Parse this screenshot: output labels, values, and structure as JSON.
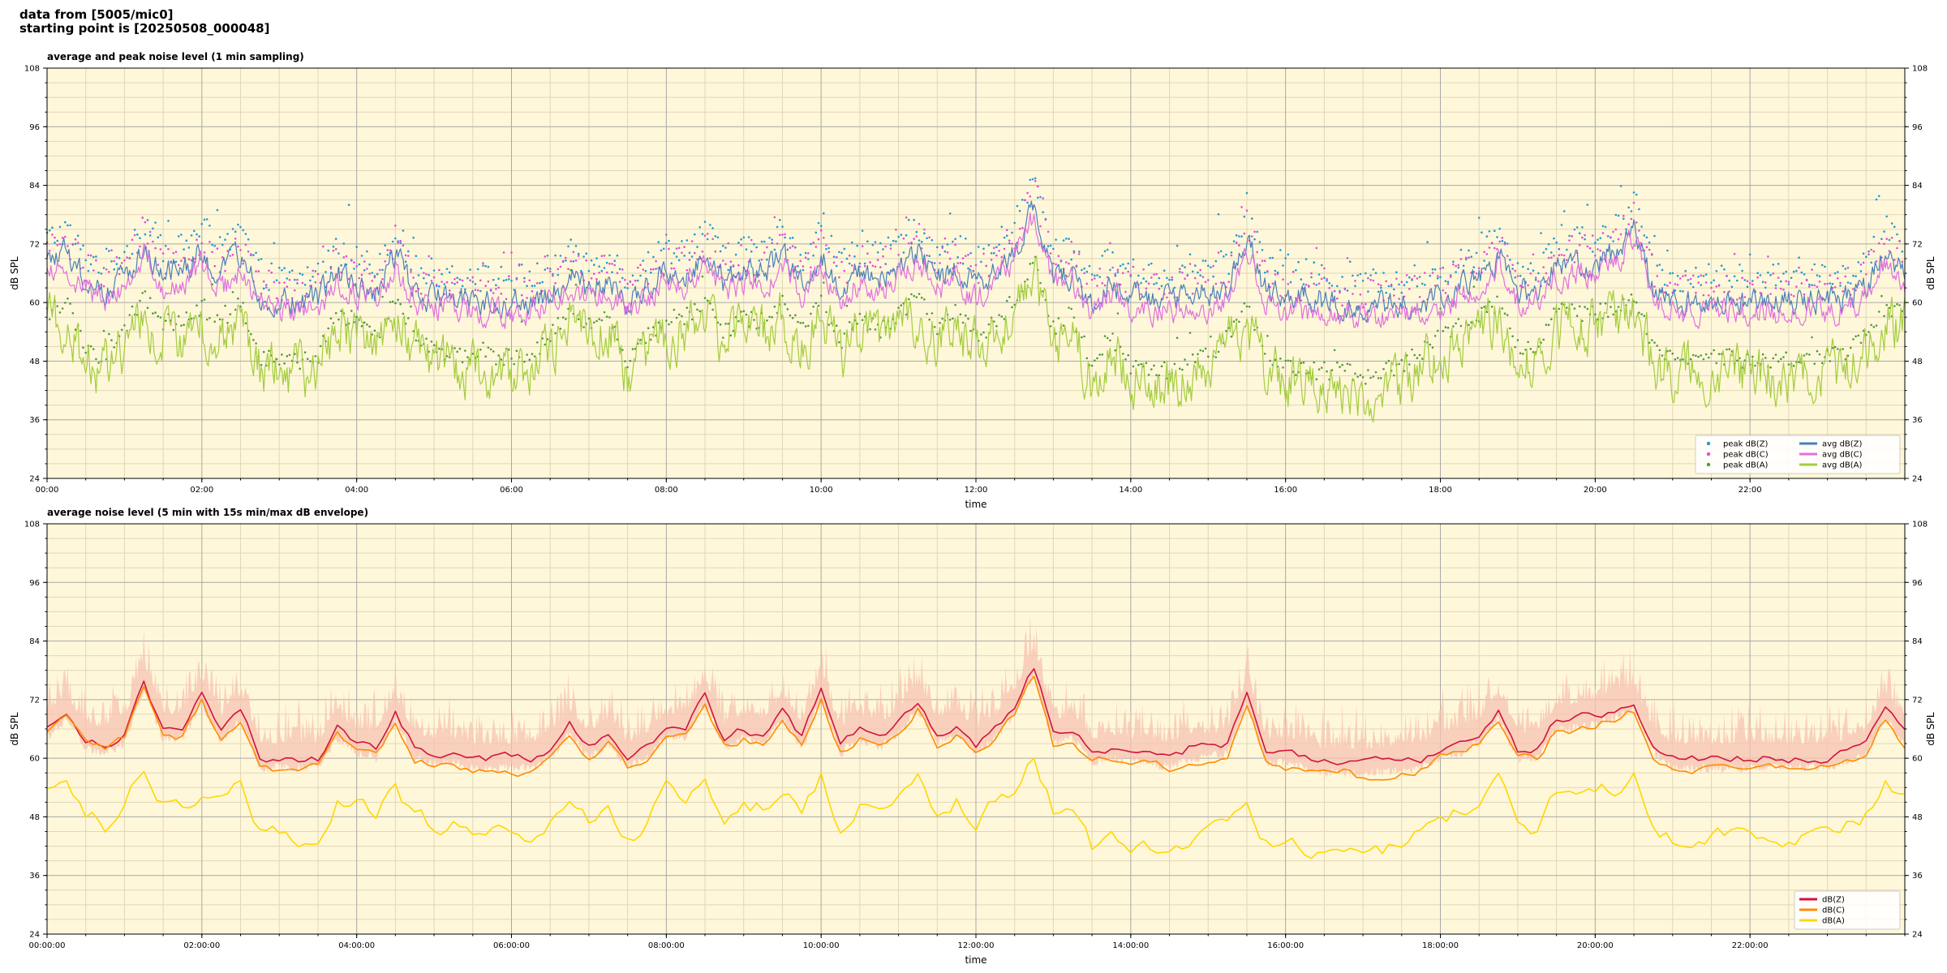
{
  "header": {
    "line1": "data from [5005/mic0]",
    "line2": "starting point is [20250508_000048]"
  },
  "colors": {
    "plot_bg": "#fff7d9",
    "grid_major": "#a8a8a8",
    "grid_minor": "#e0d7b8",
    "peak_z": "#1f9bd6",
    "peak_c": "#e64bd8",
    "peak_a": "#4f9a3d",
    "avg_z": "#4a7fb8",
    "avg_c": "#e06fe0",
    "avg_a": "#a3cd3f",
    "env": "#f7c3b0",
    "dbz": "#d1133c",
    "dbc": "#ff8c00",
    "dba": "#ffd700"
  },
  "chart_data": [
    {
      "type": "line",
      "title": "average and peak noise level (1 min sampling)",
      "xlabel": "time",
      "ylabel": "dB SPL",
      "xlim": [
        0,
        24
      ],
      "ylim": [
        24,
        108
      ],
      "y_ticks": [
        "24",
        "36",
        "48",
        "60",
        "72",
        "84",
        "96",
        "108"
      ],
      "x_ticks": [
        "00:00",
        "02:00",
        "04:00",
        "06:00",
        "08:00",
        "10:00",
        "12:00",
        "14:00",
        "16:00",
        "18:00",
        "20:00",
        "22:00"
      ],
      "grid": true,
      "legend_position": "bottom-right",
      "legend_cols": 2,
      "series": [
        {
          "name": "peak dB(Z)",
          "kind": "points",
          "color_key": "peak_z",
          "base": "Z",
          "offset": 5
        },
        {
          "name": "peak dB(C)",
          "kind": "points",
          "color_key": "peak_c",
          "base": "C",
          "offset": 5
        },
        {
          "name": "peak dB(A)",
          "kind": "points",
          "color_key": "peak_a",
          "base": "A",
          "offset": 3
        },
        {
          "name": "avg dB(Z)",
          "kind": "line",
          "color_key": "avg_z",
          "base": "Z",
          "offset": 0
        },
        {
          "name": "avg dB(C)",
          "kind": "line",
          "color_key": "avg_c",
          "base": "C",
          "offset": 0
        },
        {
          "name": "avg dB(A)",
          "kind": "line",
          "color_key": "avg_a",
          "base": "A",
          "offset": 0
        }
      ],
      "x": [
        0,
        0.25,
        0.5,
        0.75,
        1,
        1.25,
        1.5,
        1.75,
        2,
        2.25,
        2.5,
        2.75,
        3,
        3.25,
        3.5,
        3.75,
        4,
        4.25,
        4.5,
        4.75,
        5,
        5.25,
        5.5,
        5.75,
        6,
        6.25,
        6.5,
        6.75,
        7,
        7.25,
        7.5,
        7.75,
        8,
        8.25,
        8.5,
        8.75,
        9,
        9.25,
        9.5,
        9.75,
        10,
        10.25,
        10.5,
        10.75,
        11,
        11.25,
        11.5,
        11.75,
        12,
        12.25,
        12.5,
        12.75,
        13,
        13.25,
        13.5,
        13.75,
        14,
        14.25,
        14.5,
        14.75,
        15,
        15.25,
        15.5,
        15.75,
        16,
        16.25,
        16.5,
        16.75,
        17,
        17.25,
        17.5,
        17.75,
        18,
        18.25,
        18.5,
        18.75,
        19,
        19.25,
        19.5,
        19.75,
        20,
        20.25,
        20.5,
        20.75,
        21,
        21.25,
        21.5,
        21.75,
        22,
        22.25,
        22.5,
        22.75,
        23,
        23.25,
        23.5,
        23.75,
        24
      ],
      "avg_z": [
        68,
        70,
        64,
        63,
        65,
        72,
        66,
        66,
        71,
        65,
        70,
        61,
        60,
        60,
        61,
        66,
        64,
        62,
        70,
        62,
        61,
        61,
        60,
        60,
        60,
        60,
        62,
        65,
        63,
        65,
        60,
        63,
        66,
        66,
        70,
        64,
        66,
        65,
        70,
        64,
        70,
        63,
        66,
        64,
        67,
        71,
        65,
        67,
        63,
        66,
        71,
        80,
        65,
        66,
        60,
        64,
        61,
        61,
        60,
        62,
        62,
        63,
        73,
        62,
        62,
        61,
        60,
        59,
        59,
        59,
        60,
        60,
        61,
        63,
        65,
        70,
        62,
        62,
        68,
        68,
        68,
        70,
        75,
        63,
        60,
        60,
        60,
        60,
        60,
        60,
        60,
        61,
        60,
        61,
        63,
        70,
        66,
        64,
        66
      ],
      "avg_c": [
        66,
        68,
        62,
        61,
        63,
        70,
        63,
        63,
        68,
        62,
        67,
        59,
        58,
        58,
        59,
        64,
        62,
        60,
        68,
        60,
        59,
        59,
        58,
        58,
        58,
        58,
        60,
        63,
        61,
        63,
        58,
        61,
        64,
        64,
        68,
        62,
        64,
        63,
        68,
        62,
        68,
        61,
        64,
        62,
        65,
        69,
        63,
        65,
        61,
        64,
        69,
        78,
        63,
        64,
        58,
        62,
        59,
        59,
        58,
        60,
        59,
        61,
        71,
        60,
        59,
        58,
        58,
        57,
        57,
        57,
        58,
        58,
        59,
        61,
        63,
        68,
        60,
        60,
        66,
        66,
        66,
        68,
        73,
        61,
        58,
        58,
        58,
        58,
        58,
        58,
        58,
        59,
        58,
        59,
        61,
        68,
        64,
        62,
        64
      ],
      "avg_a": [
        55,
        57,
        47,
        46,
        52,
        58,
        53,
        53,
        56,
        52,
        57,
        46,
        45,
        45,
        46,
        55,
        53,
        50,
        58,
        50,
        47,
        47,
        46,
        46,
        46,
        46,
        50,
        56,
        52,
        55,
        45,
        50,
        54,
        54,
        58,
        51,
        54,
        53,
        57,
        51,
        57,
        49,
        54,
        51,
        55,
        58,
        52,
        55,
        50,
        53,
        58,
        65,
        52,
        55,
        44,
        50,
        44,
        43,
        43,
        45,
        46,
        50,
        56,
        45,
        44,
        43,
        43,
        43,
        42,
        43,
        44,
        47,
        50,
        53,
        54,
        57,
        48,
        48,
        55,
        55,
        55,
        56,
        58,
        48,
        45,
        45,
        46,
        46,
        45,
        45,
        45,
        46,
        46,
        47,
        50,
        56,
        55,
        53,
        55
      ]
    },
    {
      "type": "line",
      "title": "average noise level (5 min with 15s min/max dB envelope)",
      "xlabel": "time",
      "ylabel": "dB SPL",
      "xlim": [
        0,
        24
      ],
      "ylim": [
        24,
        108
      ],
      "y_ticks": [
        "24",
        "36",
        "48",
        "60",
        "72",
        "84",
        "96",
        "108"
      ],
      "x_ticks": [
        "00:00:00",
        "02:00:00",
        "04:00:00",
        "06:00:00",
        "08:00:00",
        "10:00:00",
        "12:00:00",
        "14:00:00",
        "16:00:00",
        "18:00:00",
        "20:00:00",
        "22:00:00"
      ],
      "grid": true,
      "legend_position": "bottom-right",
      "legend_cols": 1,
      "envelope": {
        "color_key": "env",
        "base": "Z",
        "min_offset": -3,
        "max_offset": 12
      },
      "series": [
        {
          "name": "dB(Z)",
          "kind": "line",
          "color_key": "dbz",
          "base": "Z",
          "offset": 0
        },
        {
          "name": "dB(C)",
          "kind": "line",
          "color_key": "dbc",
          "base": "C",
          "offset": 0
        },
        {
          "name": "dB(A)",
          "kind": "line",
          "color_key": "dba",
          "base": "A",
          "offset": 0
        }
      ],
      "x": [
        0,
        0.25,
        0.5,
        0.75,
        1,
        1.25,
        1.5,
        1.75,
        2,
        2.25,
        2.5,
        2.75,
        3,
        3.25,
        3.5,
        3.75,
        4,
        4.25,
        4.5,
        4.75,
        5,
        5.25,
        5.5,
        5.75,
        6,
        6.25,
        6.5,
        6.75,
        7,
        7.25,
        7.5,
        7.75,
        8,
        8.25,
        8.5,
        8.75,
        9,
        9.25,
        9.5,
        9.75,
        10,
        10.25,
        10.5,
        10.75,
        11,
        11.25,
        11.5,
        11.75,
        12,
        12.25,
        12.5,
        12.75,
        13,
        13.25,
        13.5,
        13.75,
        14,
        14.25,
        14.5,
        14.75,
        15,
        15.25,
        15.5,
        15.75,
        16,
        16.25,
        16.5,
        16.75,
        17,
        17.25,
        17.5,
        17.75,
        18,
        18.25,
        18.5,
        18.75,
        19,
        19.25,
        19.5,
        19.75,
        20,
        20.25,
        20.5,
        20.75,
        21,
        21.25,
        21.5,
        21.75,
        22,
        22.25,
        22.5,
        22.75,
        23,
        23.25,
        23.5,
        23.75,
        24
      ],
      "avg_z": [
        66,
        70,
        64,
        63,
        65,
        76,
        66,
        66,
        73,
        65,
        70,
        60,
        60,
        60,
        60,
        66,
        63,
        62,
        70,
        62,
        61,
        61,
        60,
        60,
        60,
        60,
        62,
        67,
        62,
        65,
        60,
        62,
        66,
        66,
        73,
        64,
        66,
        65,
        70,
        64,
        74,
        63,
        66,
        64,
        67,
        72,
        65,
        67,
        63,
        66,
        71,
        79,
        65,
        66,
        61,
        62,
        61,
        61,
        60,
        62,
        62,
        63,
        73,
        61,
        61,
        60,
        59,
        59,
        59,
        59,
        60,
        60,
        62,
        63,
        65,
        70,
        62,
        62,
        68,
        68,
        69,
        70,
        72,
        63,
        60,
        60,
        60,
        60,
        60,
        60,
        60,
        60,
        60,
        61,
        63,
        70,
        65,
        64,
        66
      ],
      "avg_c": [
        65,
        68,
        63,
        62,
        64,
        75,
        64,
        64,
        72,
        63,
        68,
        58,
        57,
        57,
        58,
        64,
        61,
        60,
        68,
        60,
        59,
        59,
        58,
        58,
        57,
        57,
        60,
        65,
        60,
        63,
        58,
        60,
        64,
        64,
        71,
        62,
        64,
        63,
        68,
        62,
        72,
        61,
        64,
        62,
        65,
        70,
        63,
        65,
        61,
        64,
        69,
        77,
        63,
        64,
        59,
        60,
        59,
        59,
        58,
        60,
        59,
        61,
        71,
        59,
        58,
        57,
        57,
        57,
        56,
        56,
        57,
        58,
        60,
        61,
        63,
        68,
        60,
        60,
        66,
        66,
        67,
        68,
        70,
        61,
        58,
        58,
        58,
        58,
        58,
        58,
        58,
        58,
        58,
        59,
        61,
        68,
        63,
        62,
        64
      ],
      "avg_a": [
        53,
        56,
        50,
        46,
        49,
        58,
        51,
        49,
        52,
        50,
        56,
        45,
        44,
        44,
        45,
        51,
        51,
        48,
        54,
        48,
        46,
        46,
        44,
        45,
        45,
        44,
        47,
        51,
        47,
        51,
        43,
        46,
        53,
        51,
        56,
        47,
        51,
        50,
        54,
        48,
        56,
        46,
        50,
        48,
        51,
        56,
        48,
        51,
        47,
        51,
        54,
        61,
        49,
        51,
        42,
        45,
        42,
        41,
        41,
        43,
        44,
        47,
        52,
        43,
        43,
        41,
        41,
        41,
        41,
        41,
        43,
        45,
        47,
        49,
        51,
        56,
        46,
        46,
        53,
        53,
        54,
        54,
        56,
        46,
        44,
        44,
        45,
        45,
        44,
        44,
        44,
        45,
        45,
        46,
        48,
        55,
        53,
        51,
        53
      ]
    }
  ]
}
